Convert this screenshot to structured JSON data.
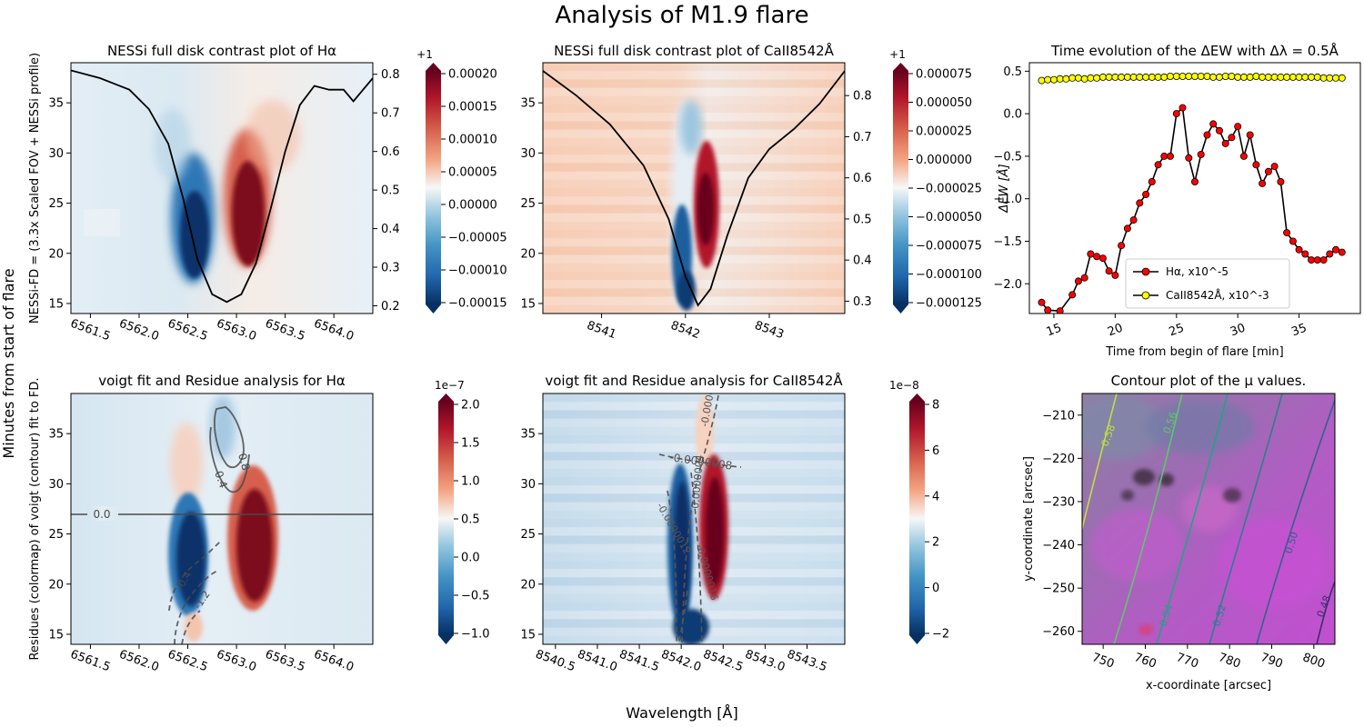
{
  "figure": {
    "title": "Analysis of M1.9 flare",
    "left_label": "Minutes from start of flare",
    "bottom_label": "Wavelength [Å]"
  },
  "chart_data": [
    {
      "id": "ha_contrast",
      "type": "heatmap",
      "title": "NESSi full disk contrast plot of Hα",
      "ylabel": "NESSi-FD = (3.3x Scaled FOV + NESSi profile)",
      "xlim": [
        6561.3,
        6564.4
      ],
      "ylim": [
        14,
        39
      ],
      "xticks": [
        "6561.5",
        "6562.0",
        "6562.5",
        "6563.0",
        "6563.5",
        "6564.0"
      ],
      "yticks": [
        "15",
        "20",
        "25",
        "30",
        "35"
      ],
      "right_ylim": [
        0.18,
        0.83
      ],
      "right_yticks": [
        "0.2",
        "0.3",
        "0.4",
        "0.5",
        "0.6",
        "0.7",
        "0.8"
      ],
      "profile_x": [
        6561.3,
        6561.6,
        6561.9,
        6562.1,
        6562.3,
        6562.45,
        6562.6,
        6562.75,
        6562.9,
        6563.05,
        6563.2,
        6563.35,
        6563.5,
        6563.65,
        6563.8,
        6563.95,
        6564.1,
        6564.2,
        6564.3,
        6564.4
      ],
      "profile_y": [
        0.81,
        0.79,
        0.76,
        0.71,
        0.62,
        0.48,
        0.32,
        0.23,
        0.21,
        0.23,
        0.31,
        0.45,
        0.6,
        0.72,
        0.77,
        0.76,
        0.76,
        0.73,
        0.76,
        0.79
      ],
      "colorbar": {
        "ticks": [
          "0.00020",
          "0.00015",
          "0.00010",
          "0.00005",
          "0.00000",
          "−0.00005",
          "−0.00010",
          "−0.00015"
        ],
        "top_label": "+1"
      }
    },
    {
      "id": "ca_contrast",
      "type": "heatmap",
      "title": "NESSi full disk contrast plot of CaII8542Å",
      "xlim": [
        8540.3,
        8543.9
      ],
      "ylim": [
        14,
        39
      ],
      "xticks": [
        "8541",
        "8542",
        "8543"
      ],
      "yticks": [
        "15",
        "20",
        "25",
        "30",
        "35"
      ],
      "right_ylim": [
        0.27,
        0.88
      ],
      "right_yticks": [
        "0.3",
        "0.4",
        "0.5",
        "0.6",
        "0.7",
        "0.8"
      ],
      "profile_x": [
        8540.3,
        8540.7,
        8541.1,
        8541.5,
        8541.8,
        8542.0,
        8542.15,
        8542.3,
        8542.5,
        8542.75,
        8543.0,
        8543.3,
        8543.6,
        8543.9
      ],
      "profile_y": [
        0.86,
        0.8,
        0.73,
        0.63,
        0.5,
        0.36,
        0.29,
        0.33,
        0.46,
        0.6,
        0.67,
        0.72,
        0.78,
        0.86
      ],
      "colorbar": {
        "ticks": [
          "0.000075",
          "0.000050",
          "0.000025",
          "0.000000",
          "−0.000025",
          "−0.000050",
          "−0.000075",
          "−0.000100",
          "−0.000125"
        ],
        "top_label": "+1"
      }
    },
    {
      "id": "ew_time",
      "type": "line",
      "title": "Time evolution of the ΔEW with Δλ = 0.5Å",
      "xlabel": "Time from begin of flare [min]",
      "ylabel": "ΔEW [Å]",
      "xlim": [
        13,
        40
      ],
      "ylim": [
        -2.35,
        0.6
      ],
      "xticks": [
        "15",
        "20",
        "25",
        "30",
        "35"
      ],
      "yticks": [
        "0.5",
        "0.0",
        "−0.5",
        "−1.0",
        "−1.5",
        "−2.0"
      ],
      "series": [
        {
          "name": "Hα, x10^-5",
          "color": "#ff0000",
          "x": [
            14,
            14.5,
            15.5,
            16.5,
            17,
            17.5,
            18,
            18.5,
            19,
            19.5,
            20,
            20.5,
            21,
            21.5,
            22,
            22.5,
            23,
            23.5,
            24,
            24.5,
            25,
            25.5,
            26,
            26.5,
            27,
            27.5,
            28,
            28.5,
            29,
            29.5,
            30,
            30.5,
            31,
            31.5,
            32,
            32.5,
            33,
            33.5,
            34,
            34.5,
            35,
            35.5,
            36,
            36.5,
            37,
            37.5,
            38,
            38.5
          ],
          "y": [
            -2.22,
            -2.31,
            -2.32,
            -2.13,
            -1.97,
            -1.93,
            -1.65,
            -1.68,
            -1.7,
            -1.85,
            -1.9,
            -1.55,
            -1.35,
            -1.25,
            -1.05,
            -0.95,
            -0.8,
            -0.6,
            -0.5,
            -0.5,
            0.0,
            0.07,
            -0.52,
            -0.8,
            -0.48,
            -0.25,
            -0.12,
            -0.2,
            -0.35,
            -0.28,
            -0.15,
            -0.5,
            -0.25,
            -0.6,
            -0.82,
            -0.68,
            -0.62,
            -0.8,
            -1.4,
            -1.5,
            -1.6,
            -1.65,
            -1.72,
            -1.72,
            -1.72,
            -1.65,
            -1.6,
            -1.63
          ]
        },
        {
          "name": "CaII8542Å, x10^-3",
          "color": "#ffff00",
          "x": [
            14,
            14.5,
            15,
            15.5,
            16,
            16.5,
            17,
            17.5,
            18,
            18.5,
            19,
            19.5,
            20,
            20.5,
            21,
            21.5,
            22,
            22.5,
            23,
            23.5,
            24,
            24.5,
            25,
            25.5,
            26,
            26.5,
            27,
            27.5,
            28,
            28.5,
            29,
            29.5,
            30,
            30.5,
            31,
            31.5,
            32,
            32.5,
            33,
            33.5,
            34,
            34.5,
            35,
            35.5,
            36,
            36.5,
            37,
            37.5,
            38,
            38.5
          ],
          "y": [
            0.39,
            0.4,
            0.4,
            0.41,
            0.41,
            0.42,
            0.42,
            0.41,
            0.42,
            0.42,
            0.43,
            0.43,
            0.43,
            0.43,
            0.43,
            0.43,
            0.43,
            0.43,
            0.43,
            0.43,
            0.43,
            0.44,
            0.44,
            0.44,
            0.44,
            0.44,
            0.44,
            0.44,
            0.43,
            0.43,
            0.44,
            0.44,
            0.43,
            0.43,
            0.43,
            0.44,
            0.43,
            0.43,
            0.43,
            0.43,
            0.43,
            0.43,
            0.43,
            0.43,
            0.43,
            0.43,
            0.42,
            0.42,
            0.42,
            0.42
          ]
        }
      ],
      "legend": "lower-right"
    },
    {
      "id": "ha_residue",
      "type": "heatmap",
      "title": "voigt fit and Residue analysis for Hα",
      "ylabel": "Residues (colormap) of voigt (contour) fit to FD.",
      "xlim": [
        6561.3,
        6564.4
      ],
      "ylim": [
        14,
        39
      ],
      "xticks": [
        "6561.5",
        "6562.0",
        "6562.5",
        "6563.0",
        "6563.5",
        "6564.0"
      ],
      "yticks": [
        "15",
        "20",
        "25",
        "30",
        "35"
      ],
      "contour_labels": [
        "0.0",
        "0.8",
        "0.4",
        "-0.4",
        "-1.2"
      ],
      "colorbar": {
        "ticks": [
          "2.0",
          "1.5",
          "1.0",
          "0.5",
          "0.0",
          "−0.5",
          "−1.0"
        ],
        "top_label": "1e−7"
      }
    },
    {
      "id": "ca_residue",
      "type": "heatmap",
      "title": "voigt fit and Residue analysis for CaII8542Å",
      "xlim": [
        8540.35,
        8543.95
      ],
      "ylim": [
        14,
        39
      ],
      "xticks": [
        "8540.5",
        "8541.0",
        "8541.5",
        "8542.0",
        "8542.5",
        "8543.0",
        "8543.5"
      ],
      "yticks": [
        "15",
        "20",
        "25",
        "30",
        "35"
      ],
      "contour_labels": [
        "-0.0000008",
        "-0.0000004",
        "0.0000004",
        "-0.0000012",
        "-0.0000016"
      ],
      "colorbar": {
        "ticks": [
          "8",
          "6",
          "4",
          "2",
          "0",
          "−2"
        ],
        "top_label": "1e−8"
      }
    },
    {
      "id": "mu_contour",
      "type": "heatmap",
      "title": "Contour plot of the μ values.",
      "xlabel": "x-coordinate [arcsec]",
      "ylabel": "y-coordinate [arcsec]",
      "xlim": [
        745,
        805
      ],
      "ylim": [
        -263,
        -205
      ],
      "xticks": [
        "750",
        "760",
        "770",
        "780",
        "790",
        "800"
      ],
      "yticks": [
        "−210",
        "−220",
        "−230",
        "−240",
        "−250",
        "−260"
      ],
      "contour_labels": [
        "0.58",
        "0.56",
        "0.54",
        "0.52",
        "0.50",
        "0.48"
      ]
    }
  ]
}
